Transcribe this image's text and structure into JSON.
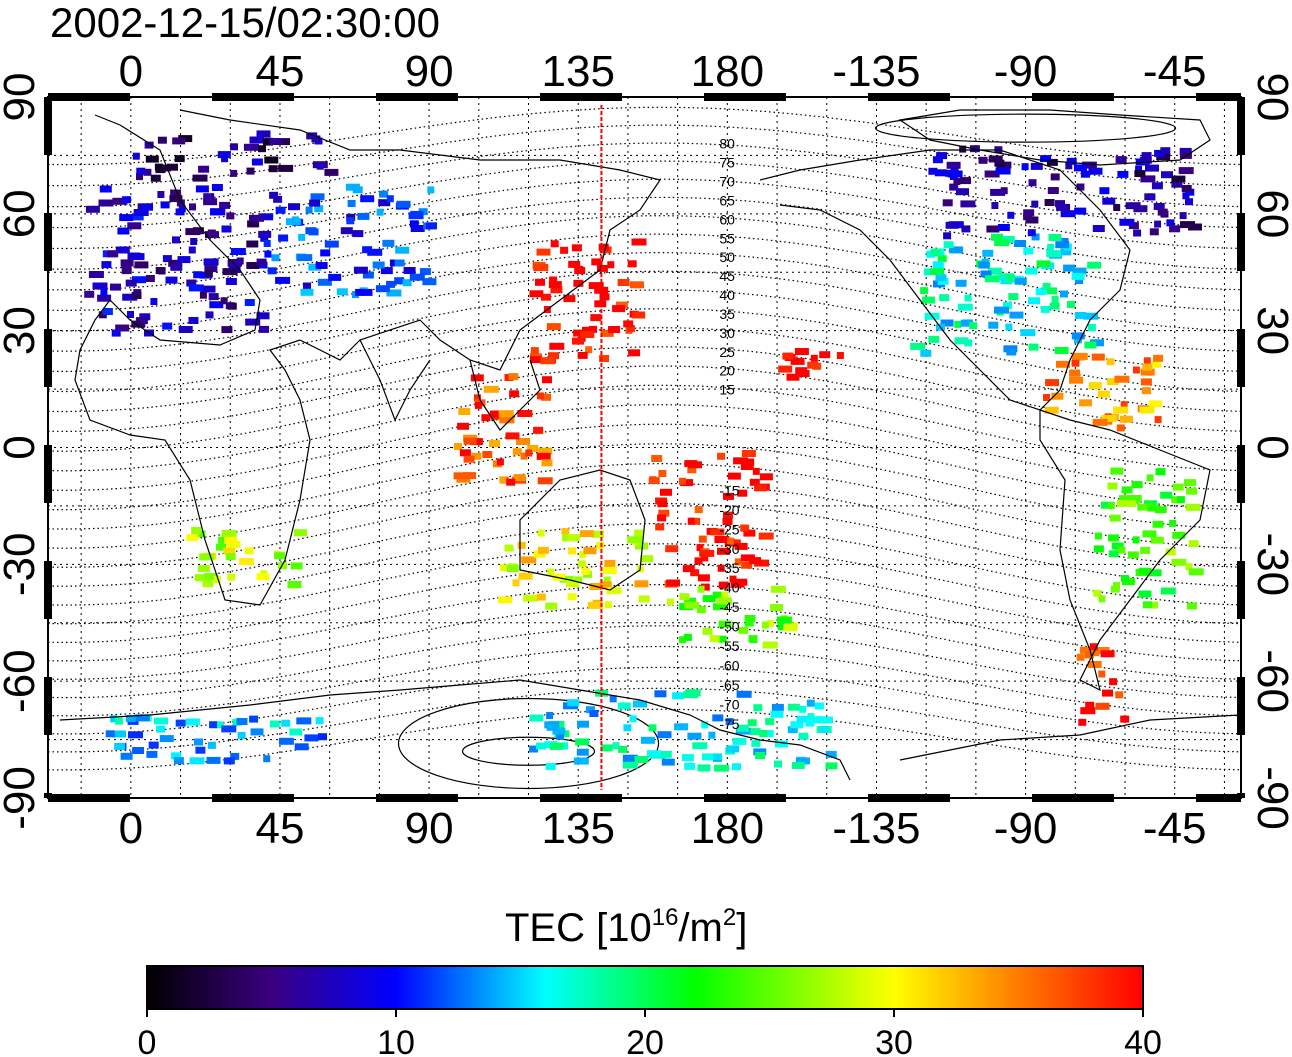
{
  "timestamp": "2002-12-15/02:30:00",
  "top_lon_ticks": [
    "0",
    "45",
    "90",
    "135",
    "180",
    "-135",
    "-90",
    "-45"
  ],
  "bottom_lon_ticks": [
    "0",
    "45",
    "90",
    "135",
    "180",
    "-135",
    "-90",
    "-45"
  ],
  "lat_ticks": [
    "90",
    "60",
    "30",
    "0",
    "-30",
    "-60",
    "-90"
  ],
  "contour_labels_north": [
    "80",
    "75",
    "70",
    "65",
    "60",
    "55",
    "50",
    "45",
    "40",
    "35",
    "30",
    "25",
    "20",
    "15"
  ],
  "contour_labels_south": [
    "15",
    "20",
    "25",
    "30",
    "35",
    "40",
    "45",
    "50",
    "55",
    "60",
    "65",
    "70",
    "75"
  ],
  "colorbar": {
    "label_prefix": "TEC  [10",
    "label_sup1": "16",
    "label_mid": "/m",
    "label_sup2": "2",
    "label_suffix": "]",
    "ticks": [
      "0",
      "10",
      "20",
      "30",
      "40"
    ],
    "min": 0,
    "max": 40,
    "stops": [
      "#000000",
      "#3a0080",
      "#0000ff",
      "#00ffff",
      "#00ff00",
      "#ffff00",
      "#ff8000",
      "#ff0000"
    ]
  },
  "chart_data": {
    "type": "heatmap",
    "title": "2002-12-15/02:30:00",
    "xlabel": "",
    "ylabel": "",
    "xlim": [
      -25,
      335
    ],
    "ylim": [
      -90,
      90
    ],
    "subsolar_meridian_lon": 142,
    "value_range": [
      0,
      40
    ],
    "regions": [
      {
        "lon": [
          -15,
          40
        ],
        "lat": [
          30,
          68
        ],
        "tec": 7
      },
      {
        "lon": [
          40,
          90
        ],
        "lat": [
          40,
          68
        ],
        "tec": 11
      },
      {
        "lon": [
          120,
          152
        ],
        "lat": [
          22,
          55
        ],
        "tec": 40
      },
      {
        "lon": [
          95,
          125
        ],
        "lat": [
          -10,
          20
        ],
        "tec": 37
      },
      {
        "lon": [
          155,
          190
        ],
        "lat": [
          -35,
          0
        ],
        "tec": 40
      },
      {
        "lon": [
          160,
          200
        ],
        "lat": [
          -50,
          -35
        ],
        "tec": 25
      },
      {
        "lon": [
          110,
          155
        ],
        "lat": [
          -40,
          -20
        ],
        "tec": 30
      },
      {
        "lon": [
          195,
          215
        ],
        "lat": [
          15,
          27
        ],
        "tec": 40
      },
      {
        "lon": [
          235,
          290
        ],
        "lat": [
          25,
          55
        ],
        "tec": 17
      },
      {
        "lon": [
          240,
          320
        ],
        "lat": [
          55,
          78
        ],
        "tec": 6
      },
      {
        "lon": [
          275,
          310
        ],
        "lat": [
          5,
          25
        ],
        "tec": 34
      },
      {
        "lon": [
          290,
          320
        ],
        "lat": [
          -40,
          -5
        ],
        "tec": 24
      },
      {
        "lon": [
          285,
          300
        ],
        "lat": [
          -70,
          -50
        ],
        "tec": 39
      },
      {
        "lon": [
          -10,
          60
        ],
        "lat": [
          -80,
          -68
        ],
        "tec": 14
      },
      {
        "lon": [
          120,
          210
        ],
        "lat": [
          -82,
          -62
        ],
        "tec": 16
      },
      {
        "lon": [
          15,
          50
        ],
        "lat": [
          -35,
          -20
        ],
        "tec": 28
      },
      {
        "lon": [
          0,
          60
        ],
        "lat": [
          70,
          82
        ],
        "tec": 5
      }
    ]
  }
}
